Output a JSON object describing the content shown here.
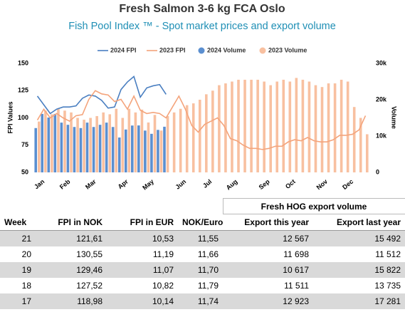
{
  "chart_data": {
    "type": "combo",
    "title": "Fresh Salmon 3-6 kg FCA Oslo",
    "subtitle": "Fish Pool Index ™ - Spot market prices and export volume",
    "ylabel": "FPI Values",
    "y2label": "Volume",
    "categories": [
      null,
      "Jan",
      null,
      null,
      null,
      "Feb",
      null,
      null,
      null,
      "Mar",
      null,
      null,
      null,
      null,
      "Apr",
      null,
      null,
      null,
      "May",
      null,
      null,
      null,
      null,
      "Jun",
      null,
      null,
      null,
      "Jul",
      null,
      null,
      null,
      "Aug",
      null,
      null,
      null,
      null,
      "Sep",
      null,
      null,
      null,
      "Oct",
      null,
      null,
      null,
      null,
      "Nov",
      null,
      null,
      null,
      "Dec",
      null,
      null
    ],
    "ylim": [
      50,
      150
    ],
    "yticks": [
      50,
      75,
      100,
      125,
      150
    ],
    "y2lim": [
      0,
      30000
    ],
    "y2ticks": [
      0,
      {
        "value": 10000,
        "label": "10k"
      },
      {
        "value": 20000,
        "label": "20k"
      },
      {
        "value": 30000,
        "label": "30k"
      }
    ],
    "legend": "top",
    "series": [
      {
        "name": "2024 FPI",
        "type": "line",
        "color": "#4a7fc1",
        "values": [
          120,
          112,
          104,
          108,
          110,
          110,
          111,
          118,
          121,
          120,
          116,
          109,
          110,
          126,
          133,
          138,
          118.98,
          127.52,
          129.46,
          130.55,
          121.61,
          null,
          null,
          null,
          null,
          null,
          null,
          null,
          null,
          null,
          null,
          null,
          null,
          null,
          null,
          null,
          null,
          null,
          null,
          null,
          null,
          null,
          null,
          null,
          null,
          null,
          null,
          null,
          null,
          null,
          null,
          null
        ]
      },
      {
        "name": "2023 FPI",
        "type": "line",
        "color": "#f4a47c",
        "values": [
          98,
          108,
          100,
          104,
          100,
          97,
          102,
          103,
          117,
          125,
          122,
          121,
          115,
          117,
          108,
          120,
          107,
          104,
          105,
          104,
          100,
          110,
          120,
          108,
          93,
          87,
          94,
          97,
          100,
          93,
          81,
          79,
          75,
          72,
          72,
          71,
          72,
          74,
          74,
          78,
          80,
          79,
          82,
          79,
          78,
          78,
          80,
          84,
          84,
          85,
          89,
          102
        ]
      },
      {
        "name": "2024 Volume",
        "type": "bar",
        "axis": "y2",
        "color": "#5b8fd0",
        "values": [
          12200,
          16100,
          15100,
          16100,
          13700,
          13100,
          12500,
          12200,
          13700,
          12500,
          13100,
          13700,
          12500,
          9600,
          11800,
          12900,
          12923,
          11511,
          10617,
          11698,
          12567,
          null,
          null,
          null,
          null,
          null,
          null,
          null,
          null,
          null,
          null,
          null,
          null,
          null,
          null,
          null,
          null,
          null,
          null,
          null,
          null,
          null,
          null,
          null,
          null,
          null,
          null,
          null,
          null,
          null,
          null,
          null
        ]
      },
      {
        "name": "2023 Volume",
        "type": "bar",
        "axis": "y2",
        "color": "#f8c0a0",
        "values": [
          14000,
          17000,
          16000,
          17500,
          17000,
          16500,
          15000,
          14500,
          15000,
          15500,
          16500,
          16000,
          17500,
          15000,
          17500,
          16500,
          17281,
          13735,
          15822,
          11512,
          15492,
          16500,
          17500,
          18500,
          19000,
          20000,
          21500,
          22500,
          24000,
          24500,
          25000,
          25500,
          25500,
          25500,
          25500,
          25000,
          24000,
          25000,
          25500,
          25000,
          26000,
          25500,
          25000,
          24000,
          23500,
          24500,
          24500,
          25500,
          25000,
          18000,
          15000,
          10500
        ]
      }
    ]
  },
  "table": {
    "group_header": "Fresh HOG export volume",
    "columns": [
      "Week",
      "FPI in NOK",
      "FPI in EUR",
      "NOK/Euro",
      "Export this year",
      "Export last year"
    ],
    "rows": [
      [
        "21",
        "121,61",
        "10,53",
        "11,55",
        "12 567",
        "15 492"
      ],
      [
        "20",
        "130,55",
        "11,19",
        "11,66",
        "11 698",
        "11 512"
      ],
      [
        "19",
        "129,46",
        "11,07",
        "11,70",
        "10 617",
        "15 822"
      ],
      [
        "18",
        "127,52",
        "10,82",
        "11,79",
        "11 511",
        "13 735"
      ],
      [
        "17",
        "118,98",
        "10,14",
        "11,74",
        "12 923",
        "17 281"
      ]
    ]
  }
}
